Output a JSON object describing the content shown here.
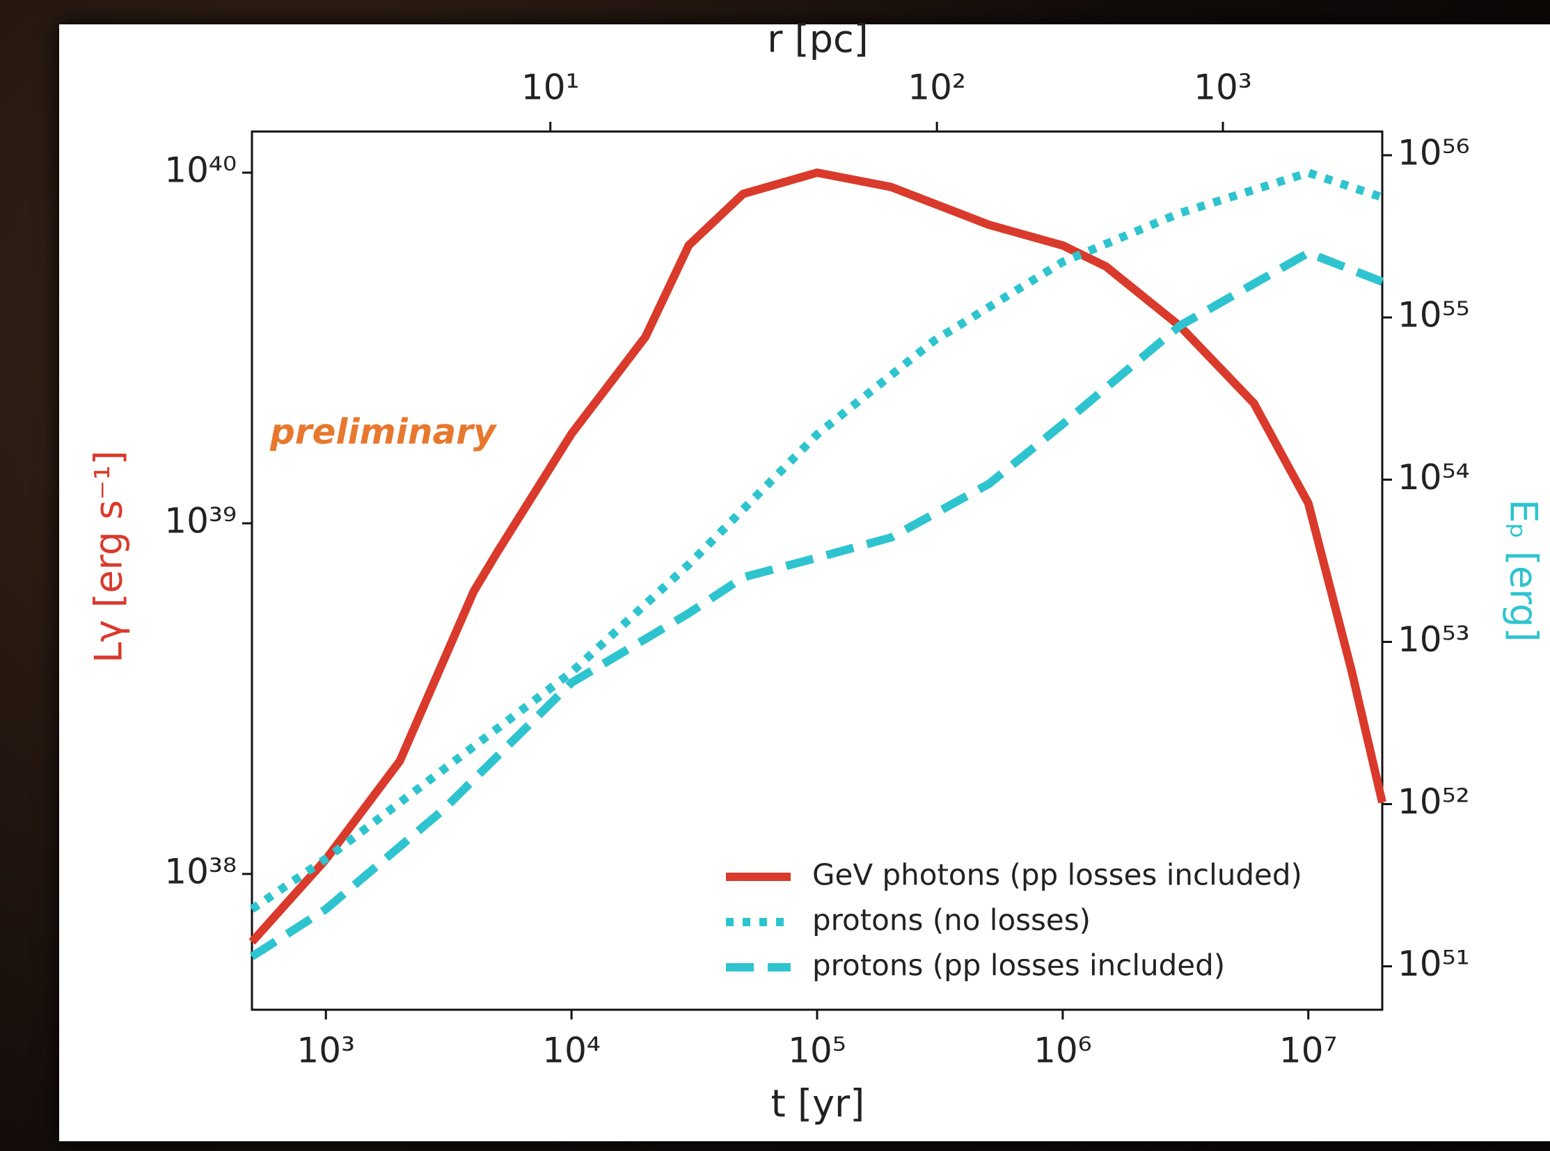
{
  "chart_data": {
    "type": "line",
    "title": "r [pc]",
    "x_label": "t [yr]",
    "y_label": "Lγ [erg s⁻¹]",
    "y2_label": "Eₚ [erg]",
    "annotation": "preliminary",
    "log_x": true,
    "log_y": true,
    "log_y2": true,
    "xlim": [
      500,
      20000000
    ],
    "xticks": [
      {
        "value": 1000,
        "label": "10³"
      },
      {
        "value": 10000,
        "label": "10⁴"
      },
      {
        "value": 100000,
        "label": "10⁵"
      },
      {
        "value": 1000000,
        "label": "10⁶"
      },
      {
        "value": 10000000,
        "label": "10⁷"
      }
    ],
    "x2ticks": [
      {
        "value": 10,
        "label": "10¹"
      },
      {
        "value": 100,
        "label": "10²"
      },
      {
        "value": 1000,
        "label": "10³"
      }
    ],
    "ylim": [
      4.1e+37,
      1.31e+40
    ],
    "yticks": [
      {
        "value": 1e+38,
        "label": "10³⁸"
      },
      {
        "value": 1e+39,
        "label": "10³⁹"
      },
      {
        "value": 1e+40,
        "label": "10⁴⁰"
      }
    ],
    "y2lim": [
      5.4e+50,
      1.4e+56
    ],
    "y2ticks": [
      {
        "value": 1e+51,
        "label": "10⁵¹"
      },
      {
        "value": 1e+52,
        "label": "10⁵²"
      },
      {
        "value": 1e+53,
        "label": "10⁵³"
      },
      {
        "value": 1e+54,
        "label": "10⁵⁴"
      },
      {
        "value": 1e+55,
        "label": "10⁵⁵"
      },
      {
        "value": 1e+56,
        "label": "10⁵⁶"
      }
    ],
    "legend": "lower right",
    "series": [
      {
        "name": "GeV photons (pp losses included)",
        "color": "#d93a2b",
        "linestyle": "solid",
        "axis": "y",
        "x": [
          500,
          1000,
          2000,
          4000,
          5000,
          10000,
          20000,
          30000,
          50000,
          100000,
          200000,
          500000,
          1000000,
          1500000,
          3000000,
          6000000,
          10000000,
          15000000,
          20000000
        ],
        "values": [
          6.4e+37,
          1.1e+38,
          2.1e+38,
          6.4e+38,
          8.3e+38,
          1.8e+39,
          3.4e+39,
          6.2e+39,
          8.7e+39,
          1e+40,
          9.1e+39,
          7.1e+39,
          6.2e+39,
          5.4e+39,
          3.65e+39,
          2.2e+39,
          1.14e+39,
          3.8e+38,
          1.6e+38
        ]
      },
      {
        "name": "protons (no losses)",
        "color": "#2ec4cf",
        "linestyle": "dotted",
        "axis": "y2",
        "x": [
          500,
          1000,
          10000,
          30000,
          100000,
          300000,
          1000000,
          3000000,
          10000000,
          20000000
        ],
        "values": [
          2.25e+51,
          4.6e+51,
          6.5e+52,
          3e+53,
          1.9e+54,
          7.2e+54,
          2.2e+55,
          4.4e+55,
          7.8e+55,
          5.5e+55
        ]
      },
      {
        "name": "protons (pp losses included)",
        "color": "#2ec4cf",
        "linestyle": "dashed",
        "axis": "y2",
        "x": [
          500,
          1000,
          3000,
          10000,
          30000,
          50000,
          100000,
          200000,
          500000,
          1000000,
          3000000,
          10000000,
          20000000
        ],
        "values": [
          1.15e+51,
          2.25e+51,
          9.2e+51,
          5.6e+52,
          1.5e+53,
          2.5e+53,
          3.3e+53,
          4.4e+53,
          9.4e+53,
          2.2e+54,
          8.9e+54,
          2.5e+55,
          1.66e+55
        ]
      }
    ]
  }
}
